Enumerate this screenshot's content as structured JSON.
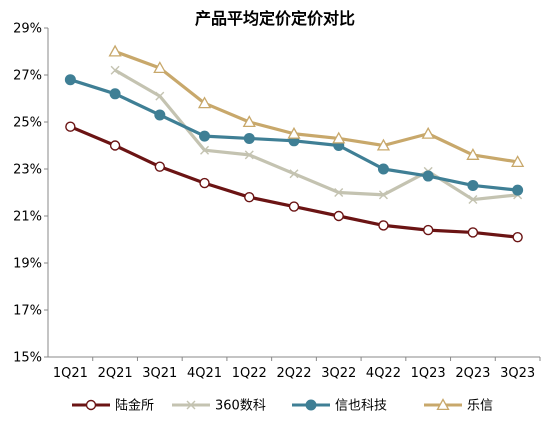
{
  "chart_data": {
    "type": "line",
    "title": "产品平均定价定价对比",
    "xlabel": "",
    "ylabel": "",
    "categories": [
      "1Q21",
      "2Q21",
      "3Q21",
      "4Q21",
      "1Q22",
      "2Q22",
      "3Q22",
      "4Q22",
      "1Q23",
      "2Q23",
      "3Q23"
    ],
    "ylim": [
      15,
      29
    ],
    "yticks": [
      15,
      17,
      19,
      21,
      23,
      25,
      27,
      29
    ],
    "ytick_labels": [
      "15%",
      "17%",
      "19%",
      "21%",
      "23%",
      "25%",
      "27%",
      "29%"
    ],
    "grid": false,
    "legend_position": "bottom",
    "series": [
      {
        "name": "陆金所",
        "color": "#6b1414",
        "marker": "circle-open",
        "values": [
          24.8,
          24.0,
          23.1,
          22.4,
          21.8,
          21.4,
          21.0,
          20.6,
          20.4,
          20.3,
          20.1
        ]
      },
      {
        "name": "360数科",
        "color": "#c4c3b1",
        "marker": "x",
        "values": [
          null,
          27.2,
          26.1,
          23.8,
          23.6,
          22.8,
          22.0,
          21.9,
          22.9,
          21.7,
          21.9
        ]
      },
      {
        "name": "信也科技",
        "color": "#3f7f95",
        "marker": "circle-filled",
        "values": [
          26.8,
          26.2,
          25.3,
          24.4,
          24.3,
          24.2,
          24.0,
          23.0,
          22.7,
          22.3,
          22.1
        ]
      },
      {
        "name": "乐信",
        "color": "#c8a86b",
        "marker": "triangle-open",
        "values": [
          null,
          28.0,
          27.3,
          25.8,
          25.0,
          24.5,
          24.3,
          24.0,
          24.5,
          23.6,
          23.3
        ]
      }
    ]
  }
}
